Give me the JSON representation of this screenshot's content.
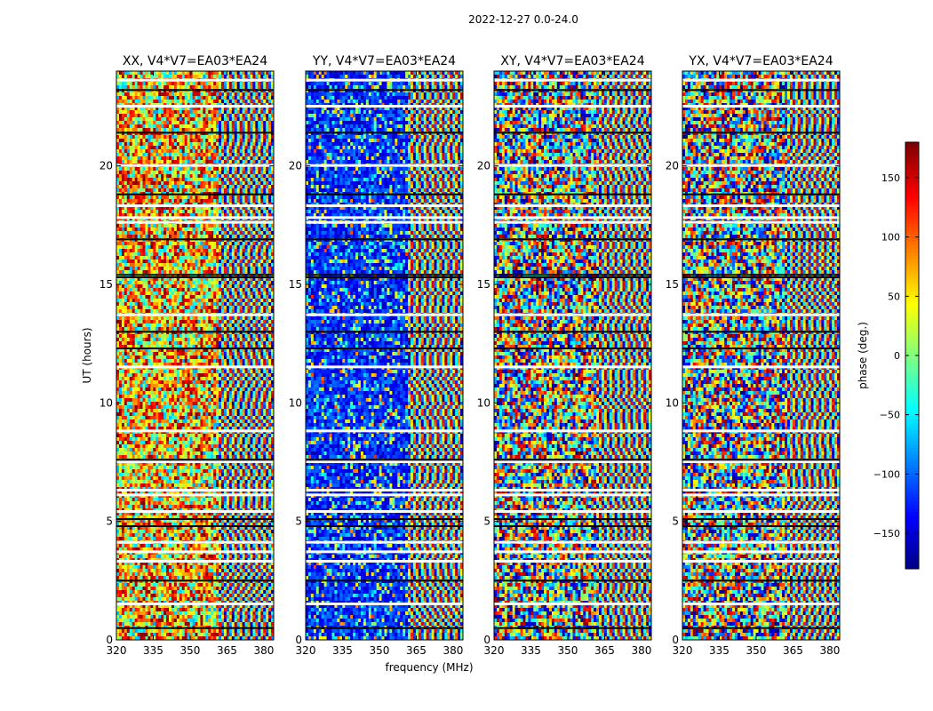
{
  "figure": {
    "suptitle": "2022-12-27 0.0-24.0",
    "xlabel": "frequency (MHz)",
    "ylabel": "UT (hours)"
  },
  "chart_data": {
    "type": "heatmap",
    "x_range_mhz": [
      320,
      384
    ],
    "y_range_hours": [
      0,
      24
    ],
    "x_ticks": [
      320,
      335,
      350,
      365,
      380
    ],
    "y_ticks": [
      0,
      5,
      10,
      15,
      20
    ],
    "grid": false,
    "panels": [
      {
        "title": "XX, V4*V7=EA03*EA24",
        "polarization": "XX",
        "tone": "warm"
      },
      {
        "title": "YY, V4*V7=EA03*EA24",
        "polarization": "YY",
        "tone": "cool"
      },
      {
        "title": "XY, V4*V7=EA03*EA24",
        "polarization": "XY",
        "tone": "random"
      },
      {
        "title": "YX, V4*V7=EA03*EA24",
        "polarization": "YX",
        "tone": "random"
      }
    ],
    "gap_rows_hours": [
      1.5,
      3.3,
      3.7,
      4.1,
      5.4,
      6.1,
      6.3,
      7.5,
      8.8,
      11.5,
      13.7,
      17.6,
      17.8,
      18.3,
      20.0,
      22.5,
      23.6
    ],
    "black_rows_hours": [
      0.5,
      2.5,
      4.8,
      5.1,
      7.6,
      12.3,
      13.0,
      15.3,
      15.4,
      16.9,
      18.8,
      21.4,
      23.2
    ],
    "colorbar": {
      "label": "phase (deg.)",
      "colormap": "jet",
      "range": [
        -180,
        180
      ],
      "ticks": [
        150,
        100,
        50,
        0,
        -50,
        -100,
        -150
      ],
      "tick_labels": [
        "150",
        "100",
        "50",
        "0",
        "−50",
        "−100",
        "−150"
      ]
    }
  }
}
